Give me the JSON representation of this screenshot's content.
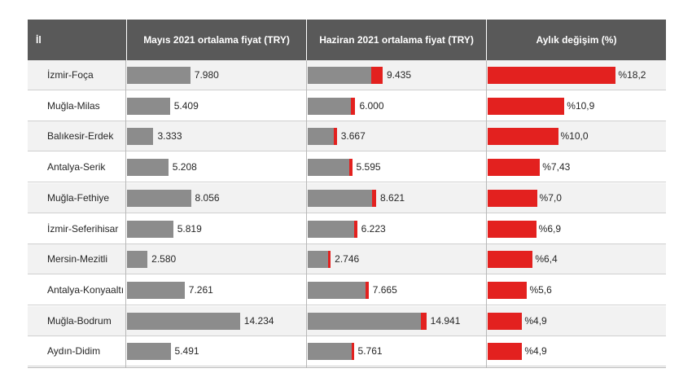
{
  "chart_data": {
    "type": "table",
    "columns": [
      "İl",
      "Mayıs 2021 ortalama fiyat (TRY)",
      "Haziran 2021 ortalama fiyat (TRY)",
      "Aylık değişim (%)"
    ],
    "rows": [
      {
        "city": "İzmir-Foça",
        "may": 7980,
        "may_label": "7.980",
        "june": 9435,
        "june_label": "9.435",
        "change": 18.2,
        "change_label": "%18,2"
      },
      {
        "city": "Muğla-Milas",
        "may": 5409,
        "may_label": "5.409",
        "june": 6000,
        "june_label": "6.000",
        "change": 10.9,
        "change_label": "%10,9"
      },
      {
        "city": "Balıkesir-Erdek",
        "may": 3333,
        "may_label": "3.333",
        "june": 3667,
        "june_label": "3.667",
        "change": 10.0,
        "change_label": "%10,0"
      },
      {
        "city": "Antalya-Serik",
        "may": 5208,
        "may_label": "5.208",
        "june": 5595,
        "june_label": "5.595",
        "change": 7.43,
        "change_label": "%7,43"
      },
      {
        "city": "Muğla-Fethiye",
        "may": 8056,
        "may_label": "8.056",
        "june": 8621,
        "june_label": "8.621",
        "change": 7.0,
        "change_label": "%7,0"
      },
      {
        "city": "İzmir-Seferihisar",
        "may": 5819,
        "may_label": "5.819",
        "june": 6223,
        "june_label": "6.223",
        "change": 6.9,
        "change_label": "%6,9"
      },
      {
        "city": "Mersin-Mezitli",
        "may": 2580,
        "may_label": "2.580",
        "june": 2746,
        "june_label": "2.746",
        "change": 6.4,
        "change_label": "%6,4"
      },
      {
        "city": "Antalya-Konyaaltı",
        "may": 7261,
        "may_label": "7.261",
        "june": 7665,
        "june_label": "7.665",
        "change": 5.6,
        "change_label": "%5,6"
      },
      {
        "city": "Muğla-Bodrum",
        "may": 14234,
        "may_label": "14.234",
        "june": 14941,
        "june_label": "14.941",
        "change": 4.9,
        "change_label": "%4,9"
      },
      {
        "city": "Aydın-Didim",
        "may": 5491,
        "may_label": "5.491",
        "june": 5761,
        "june_label": "5.761",
        "change": 4.9,
        "change_label": "%4,9"
      }
    ],
    "colors": {
      "price_bar": "#8c8c8c",
      "increase": "#e3211f",
      "header_bg": "#595959"
    }
  }
}
